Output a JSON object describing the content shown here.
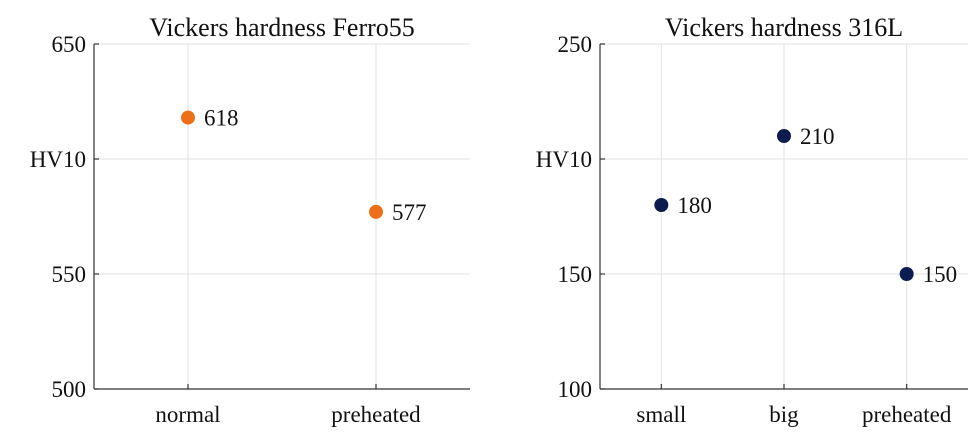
{
  "chart_data": [
    {
      "type": "scatter",
      "title": "Vickers hardness Ferro55",
      "ylabel": "HV10",
      "xlabel": "",
      "categories": [
        "normal",
        "preheated"
      ],
      "values": [
        618,
        577
      ],
      "data_labels": [
        "618",
        "577"
      ],
      "ylim": [
        500,
        650
      ],
      "yticks": [
        "650",
        "550",
        "500"
      ],
      "grid": true,
      "color": "#ED7019"
    },
    {
      "type": "scatter",
      "title": "Vickers hardness 316L",
      "ylabel": "HV10",
      "xlabel": "",
      "categories": [
        "small",
        "big",
        "preheated"
      ],
      "values": [
        180,
        210,
        150
      ],
      "data_labels": [
        "180",
        "210",
        "150"
      ],
      "ylim": [
        100,
        250
      ],
      "yticks": [
        "250",
        "150",
        "100"
      ],
      "grid": true,
      "color": "#0B1D4E"
    }
  ]
}
